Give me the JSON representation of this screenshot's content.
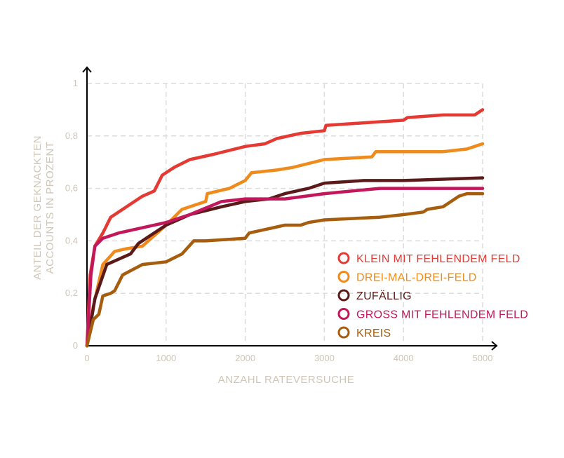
{
  "chart_data": {
    "type": "line",
    "xlabel": "ANZAHL RATEVERSUCHE",
    "ylabel_lines": [
      "ANTEIL DER GEKNACKTEN",
      "ACCOUNTS IN PROZENT"
    ],
    "xlim": [
      0,
      5000
    ],
    "ylim": [
      0,
      1
    ],
    "x_ticks": [
      0,
      1000,
      2000,
      3000,
      4000,
      5000
    ],
    "x_tick_labels": [
      "0",
      "1000",
      "2000",
      "3000",
      "4000",
      "5000"
    ],
    "y_ticks": [
      0,
      0.2,
      0.4,
      0.6,
      0.8,
      1
    ],
    "y_tick_labels": [
      "0",
      "0,2",
      "0,4",
      "0,6",
      "0,8",
      "1"
    ],
    "grid": true,
    "legend_position": "bottom-right",
    "series": [
      {
        "name": "KLEIN MIT FEHLENDEM FELD",
        "color": "#e53a33",
        "points": [
          [
            0,
            0
          ],
          [
            40,
            0.27
          ],
          [
            100,
            0.38
          ],
          [
            200,
            0.43
          ],
          [
            300,
            0.49
          ],
          [
            500,
            0.53
          ],
          [
            700,
            0.57
          ],
          [
            850,
            0.59
          ],
          [
            950,
            0.65
          ],
          [
            1100,
            0.68
          ],
          [
            1300,
            0.71
          ],
          [
            1600,
            0.73
          ],
          [
            2000,
            0.76
          ],
          [
            2250,
            0.77
          ],
          [
            2400,
            0.79
          ],
          [
            2700,
            0.81
          ],
          [
            3000,
            0.82
          ],
          [
            3020,
            0.84
          ],
          [
            3500,
            0.85
          ],
          [
            4000,
            0.86
          ],
          [
            4050,
            0.87
          ],
          [
            4500,
            0.88
          ],
          [
            4900,
            0.88
          ],
          [
            5000,
            0.9
          ]
        ]
      },
      {
        "name": "DREI-MAL-DREI-FELD",
        "color": "#ef8a1c",
        "points": [
          [
            0,
            0
          ],
          [
            80,
            0.15
          ],
          [
            200,
            0.31
          ],
          [
            350,
            0.36
          ],
          [
            500,
            0.37
          ],
          [
            700,
            0.38
          ],
          [
            1000,
            0.46
          ],
          [
            1200,
            0.52
          ],
          [
            1500,
            0.55
          ],
          [
            1520,
            0.58
          ],
          [
            1800,
            0.6
          ],
          [
            2000,
            0.63
          ],
          [
            2080,
            0.66
          ],
          [
            2400,
            0.67
          ],
          [
            2600,
            0.68
          ],
          [
            3000,
            0.71
          ],
          [
            3600,
            0.72
          ],
          [
            3650,
            0.74
          ],
          [
            4500,
            0.74
          ],
          [
            4800,
            0.75
          ],
          [
            5000,
            0.77
          ]
        ]
      },
      {
        "name": "ZUFÄLLIG",
        "color": "#5a1a1a",
        "points": [
          [
            0,
            0
          ],
          [
            100,
            0.18
          ],
          [
            250,
            0.31
          ],
          [
            400,
            0.33
          ],
          [
            550,
            0.35
          ],
          [
            650,
            0.39
          ],
          [
            800,
            0.42
          ],
          [
            1000,
            0.46
          ],
          [
            1300,
            0.5
          ],
          [
            1700,
            0.53
          ],
          [
            2000,
            0.55
          ],
          [
            2300,
            0.56
          ],
          [
            2500,
            0.58
          ],
          [
            2800,
            0.6
          ],
          [
            3000,
            0.62
          ],
          [
            3500,
            0.63
          ],
          [
            4000,
            0.63
          ],
          [
            5000,
            0.64
          ]
        ]
      },
      {
        "name": "GROSS MIT FEHLENDEM FELD",
        "color": "#c2185b",
        "points": [
          [
            0,
            0
          ],
          [
            50,
            0.27
          ],
          [
            100,
            0.38
          ],
          [
            200,
            0.41
          ],
          [
            400,
            0.43
          ],
          [
            700,
            0.45
          ],
          [
            1000,
            0.47
          ],
          [
            1300,
            0.5
          ],
          [
            1700,
            0.55
          ],
          [
            2000,
            0.56
          ],
          [
            2500,
            0.56
          ],
          [
            3000,
            0.58
          ],
          [
            3700,
            0.6
          ],
          [
            4500,
            0.6
          ],
          [
            5000,
            0.6
          ]
        ]
      },
      {
        "name": "KREIS",
        "color": "#a65e0e",
        "points": [
          [
            0,
            0
          ],
          [
            80,
            0.1
          ],
          [
            150,
            0.12
          ],
          [
            200,
            0.19
          ],
          [
            300,
            0.2
          ],
          [
            350,
            0.21
          ],
          [
            450,
            0.27
          ],
          [
            700,
            0.31
          ],
          [
            1000,
            0.32
          ],
          [
            1200,
            0.35
          ],
          [
            1350,
            0.4
          ],
          [
            1500,
            0.4
          ],
          [
            2000,
            0.41
          ],
          [
            2050,
            0.43
          ],
          [
            2500,
            0.46
          ],
          [
            2700,
            0.46
          ],
          [
            2800,
            0.47
          ],
          [
            3000,
            0.48
          ],
          [
            3700,
            0.49
          ],
          [
            4000,
            0.5
          ],
          [
            4250,
            0.51
          ],
          [
            4300,
            0.52
          ],
          [
            4500,
            0.53
          ],
          [
            4700,
            0.57
          ],
          [
            4800,
            0.58
          ],
          [
            5000,
            0.58
          ]
        ]
      }
    ]
  }
}
